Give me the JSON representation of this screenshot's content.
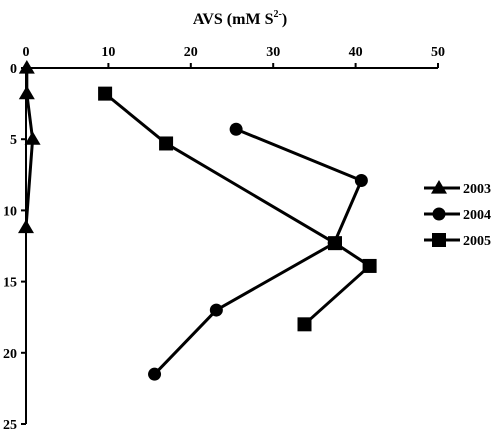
{
  "chart_data": {
    "type": "line",
    "title_main": "AVS (mM S",
    "title_sup": "2-",
    "title_close": ")",
    "xlabel": "",
    "ylabel": "",
    "xlim": [
      0,
      50
    ],
    "ylim": [
      0,
      25
    ],
    "x_ticks": [
      "0",
      "10",
      "20",
      "30",
      "40",
      "50"
    ],
    "y_ticks": [
      "0",
      "5",
      "10",
      "15",
      "20",
      "25"
    ],
    "x_axis_position": "top",
    "y_axis_inverted": true,
    "grid": false,
    "legend_position": "right",
    "series": [
      {
        "name": "2003",
        "marker": "triangle",
        "x": [
          0.1,
          0.1,
          0.8,
          0.0
        ],
        "y": [
          0.0,
          1.8,
          5.0,
          11.2
        ]
      },
      {
        "name": "2004",
        "marker": "circle",
        "x": [
          25.5,
          40.7,
          37.4,
          23.1,
          15.6
        ],
        "y": [
          4.3,
          7.9,
          12.3,
          17.0,
          21.5
        ]
      },
      {
        "name": "2005",
        "marker": "square",
        "x": [
          9.6,
          17.0,
          37.5,
          41.7,
          33.8
        ],
        "y": [
          1.8,
          5.3,
          12.3,
          13.9,
          18.0
        ]
      }
    ]
  }
}
